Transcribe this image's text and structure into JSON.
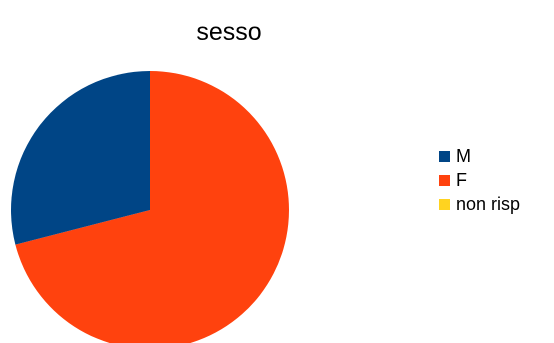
{
  "chart_data": {
    "type": "pie",
    "title": "sesso",
    "slices": [
      {
        "label": "M",
        "value": 29,
        "color": "#004586"
      },
      {
        "label": "F",
        "value": 71,
        "color": "#FF420E"
      },
      {
        "label": "non risp",
        "value": 0,
        "color": "#FFD320"
      }
    ],
    "start_angle_deg": 0,
    "direction": "clockwise-from-top-with-M-last",
    "legend_position": "right"
  }
}
